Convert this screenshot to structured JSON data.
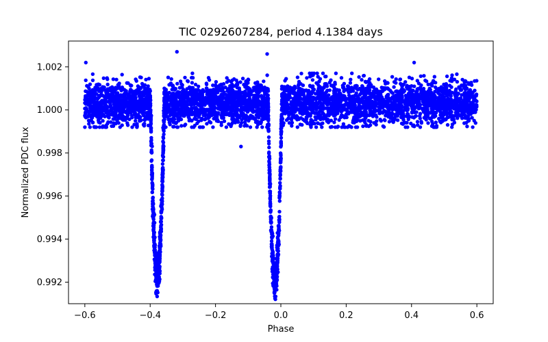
{
  "chart_data": {
    "type": "scatter",
    "title": "TIC 0292607284, period 4.1384 days",
    "xlabel": "Phase",
    "ylabel": "Normalized PDC flux",
    "xlim": [
      -0.65,
      0.65
    ],
    "ylim": [
      0.991,
      1.0032
    ],
    "x_ticks": [
      -0.6,
      -0.4,
      -0.2,
      0.0,
      0.2,
      0.4,
      0.6
    ],
    "x_tick_labels": [
      "−0.6",
      "−0.4",
      "−0.2",
      "0.0",
      "0.2",
      "0.4",
      "0.6"
    ],
    "y_ticks": [
      0.992,
      0.994,
      0.996,
      0.998,
      1.0,
      1.002
    ],
    "y_tick_labels": [
      "0.992",
      "0.994",
      "0.996",
      "0.998",
      "1.000",
      "1.002"
    ],
    "grid": false,
    "marker_color": "#0000ff",
    "phase_range": [
      -0.6,
      0.6
    ],
    "baseline_flux": 1.0003,
    "baseline_scatter": 0.0005,
    "eclipses": [
      {
        "center_phase": -0.378,
        "depth": 0.008,
        "half_width": 0.021
      },
      {
        "center_phase": -0.018,
        "depth": 0.0083,
        "half_width": 0.021
      }
    ],
    "outliers": [
      {
        "x": -0.597,
        "y": 1.0022
      },
      {
        "x": -0.318,
        "y": 1.0027
      },
      {
        "x": -0.042,
        "y": 1.0026
      },
      {
        "x": 0.408,
        "y": 1.0022
      },
      {
        "x": -0.122,
        "y": 0.9983
      }
    ]
  }
}
